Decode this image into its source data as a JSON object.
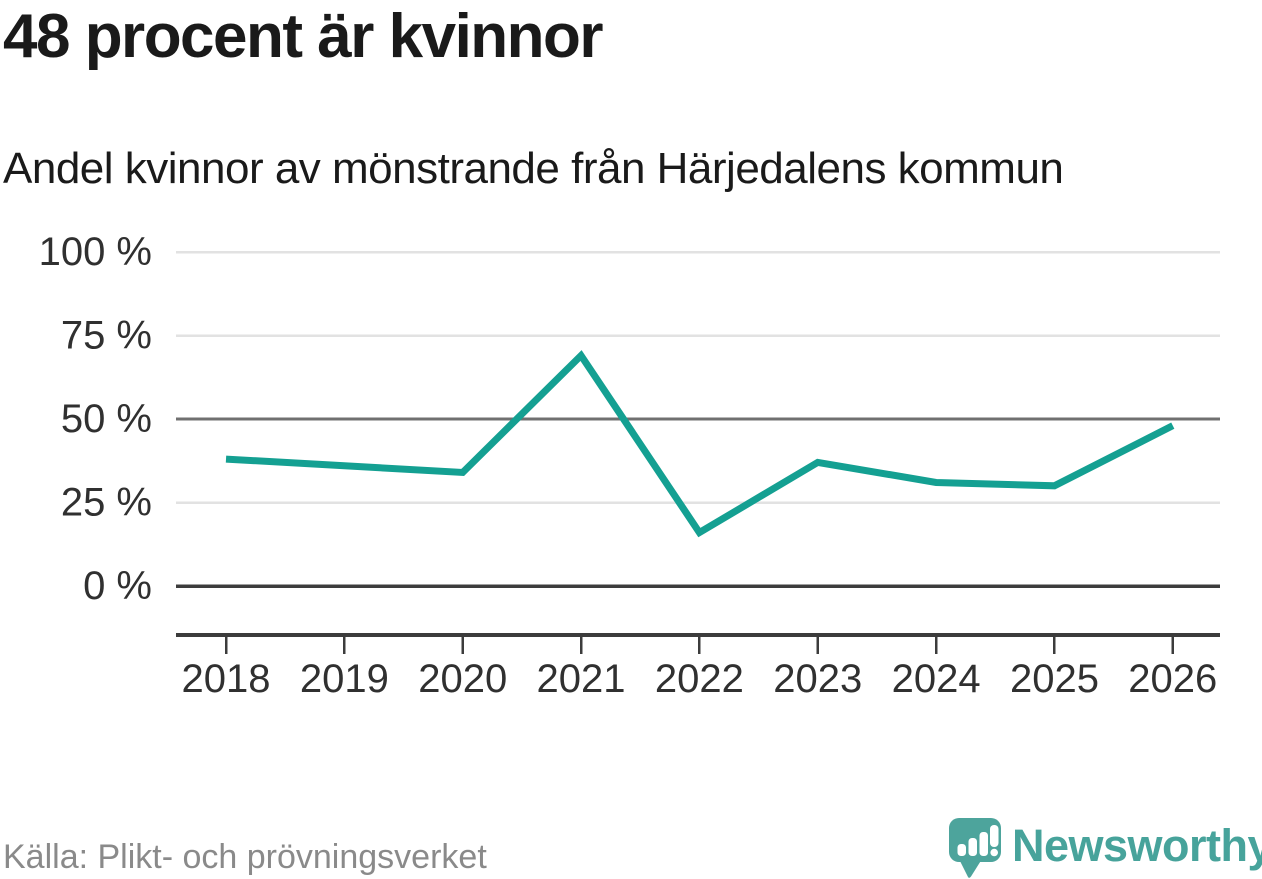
{
  "header": {
    "title": "48 procent är kvinnor",
    "subtitle": "Andel kvinnor av mönstrande från Härjedalens kommun"
  },
  "chart_data": {
    "type": "line",
    "title": "48 procent är kvinnor",
    "subtitle": "Andel kvinnor av mönstrande från Härjedalens kommun",
    "x": [
      2018,
      2019,
      2020,
      2021,
      2022,
      2023,
      2024,
      2025,
      2026
    ],
    "xtick_labels": [
      "2018",
      "2019",
      "2020",
      "2021",
      "2022",
      "2023",
      "2024",
      "2025",
      "2026"
    ],
    "series": [
      {
        "name": "Andel kvinnor av mönstrande",
        "values": [
          38,
          36,
          34,
          69,
          16,
          37,
          31,
          30,
          48
        ],
        "color": "#14a092"
      }
    ],
    "unit": "%",
    "ylim": [
      0,
      100
    ],
    "yticks": [
      0,
      25,
      50,
      75,
      100
    ],
    "ytick_labels": [
      "0 %",
      "25 %",
      "50 %",
      "75 %",
      "100 %"
    ],
    "grid": "horizontal",
    "legend": "none",
    "emphasized_gridline": 50,
    "baseline_gridline": 0
  },
  "footer": {
    "source": "Källa: Plikt- och prövningsverket",
    "brand": "Newsworthy"
  },
  "colors": {
    "line": "#14a092",
    "title_text": "#1a1a1a",
    "axis_text": "#303030",
    "grid_light": "#e2e2e2",
    "grid_mid": "#707070",
    "axis_dark": "#3c3c3c",
    "source_text": "#8a8a8a",
    "brand_teal": "#47a39b"
  }
}
